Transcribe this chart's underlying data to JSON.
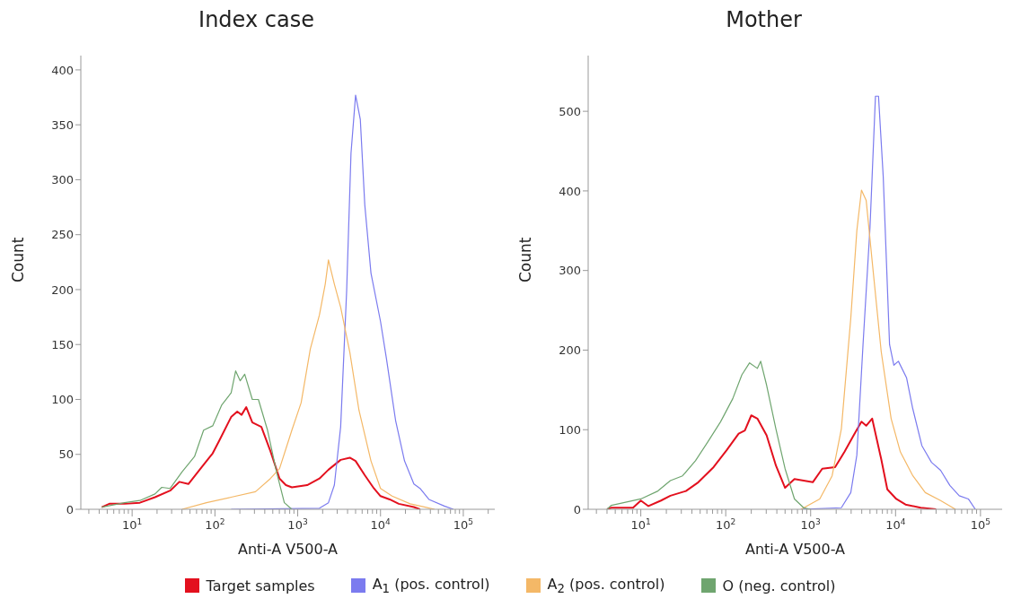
{
  "chart_data": [
    {
      "type": "line",
      "title": "Index case",
      "xlabel": "Anti-A V500-A",
      "ylabel": "Count",
      "log": "x",
      "legend": "bottom",
      "grid": false,
      "marker": "none",
      "line_style": "solid",
      "xlim": [
        2.4,
        240000
      ],
      "ylim": [
        0,
        413
      ],
      "yticks": [
        0,
        50,
        100,
        150,
        200,
        250,
        300,
        350,
        400
      ],
      "xticks": [
        {
          "value": 3,
          "label": null
        },
        {
          "value": 4,
          "label": null
        },
        {
          "value": 5,
          "label": null
        },
        {
          "value": 6,
          "label": null
        },
        {
          "value": 7,
          "label": null
        },
        {
          "value": 8,
          "label": null
        },
        {
          "value": 9,
          "label": null
        },
        {
          "value": 10,
          "label": "10$^{1}$"
        },
        {
          "value": 20,
          "label": null
        },
        {
          "value": 30,
          "label": null
        },
        {
          "value": 40,
          "label": null
        },
        {
          "value": 50,
          "label": null
        },
        {
          "value": 60,
          "label": null
        },
        {
          "value": 70,
          "label": null
        },
        {
          "value": 80,
          "label": null
        },
        {
          "value": 90,
          "label": null
        },
        {
          "value": 100,
          "label": "10$^{2}$"
        },
        {
          "value": 200,
          "label": null
        },
        {
          "value": 300,
          "label": null
        },
        {
          "value": 400,
          "label": null
        },
        {
          "value": 500,
          "label": null
        },
        {
          "value": 600,
          "label": null
        },
        {
          "value": 700,
          "label": null
        },
        {
          "value": 800,
          "label": null
        },
        {
          "value": 900,
          "label": null
        },
        {
          "value": 1000,
          "label": "10$^{3}$"
        },
        {
          "value": 2000,
          "label": null
        },
        {
          "value": 3000,
          "label": null
        },
        {
          "value": 4000,
          "label": null
        },
        {
          "value": 5000,
          "label": null
        },
        {
          "value": 6000,
          "label": null
        },
        {
          "value": 7000,
          "label": null
        },
        {
          "value": 8000,
          "label": null
        },
        {
          "value": 9000,
          "label": null
        },
        {
          "value": 10000,
          "label": "10$^{4}$"
        },
        {
          "value": 20000,
          "label": null
        },
        {
          "value": 30000,
          "label": null
        },
        {
          "value": 40000,
          "label": null
        },
        {
          "value": 50000,
          "label": null
        },
        {
          "value": 60000,
          "label": null
        },
        {
          "value": 70000,
          "label": null
        },
        {
          "value": 80000,
          "label": null
        },
        {
          "value": 90000,
          "label": null
        },
        {
          "value": 100000,
          "label": "10$^{5}$"
        },
        {
          "value": 200000,
          "label": null
        }
      ],
      "series": [
        {
          "name": "Target samples",
          "color": "#e3101e",
          "x": [
            4.3,
            5.3,
            8.1,
            12.4,
            18.9,
            28.8,
            37.2,
            47.8,
            67,
            94,
            112,
            157,
            186,
            210,
            239,
            283,
            364,
            468,
            603,
            720,
            850,
            1300,
            1830,
            2350,
            3300,
            4260,
            5000,
            6460,
            8330,
            10000,
            12900,
            16600,
            25300,
            30000
          ],
          "values": [
            2,
            5,
            5,
            6,
            11,
            17,
            25,
            23,
            37,
            51,
            62,
            84,
            89,
            86,
            93,
            79,
            75,
            53,
            28,
            22,
            20,
            22,
            28,
            36,
            45,
            47,
            44,
            31,
            19,
            12,
            9,
            5,
            2,
            0
          ]
        },
        {
          "name": "A$_{1}$ (pos. control)",
          "color": "#7b7bef",
          "x": [
            157,
            1830,
            2350,
            2770,
            3300,
            3900,
            4400,
            5000,
            5700,
            6460,
            7670,
            10000,
            11800,
            15200,
            19500,
            25300,
            30000,
            38400,
            59000,
            76000
          ],
          "values": [
            0,
            1,
            6,
            22,
            75,
            199,
            324,
            377,
            355,
            277,
            215,
            171,
            137,
            81,
            44,
            23,
            19,
            9,
            3,
            0
          ]
        },
        {
          "name": "A$_{2}$ (pos. control)",
          "color": "#f4b867",
          "x": [
            40,
            79,
            157,
            309,
            468,
            603,
            850,
            1100,
            1420,
            1830,
            2150,
            2350,
            2770,
            3300,
            4260,
            5500,
            7670,
            10000,
            13800,
            22800,
            34700,
            45000
          ],
          "values": [
            0,
            6,
            11,
            16,
            28,
            37,
            72,
            97,
            146,
            177,
            205,
            227,
            205,
            184,
            143,
            90,
            44,
            19,
            12,
            5,
            2,
            0
          ]
        },
        {
          "name": "O (neg. control)",
          "color": "#6fa56f",
          "x": [
            4.3,
            8.1,
            12.4,
            18.9,
            22.8,
            28.8,
            40,
            56.7,
            73,
            94,
            121,
            157,
            178,
            202,
            229,
            283,
            335,
            432,
            555,
            689,
            850
          ],
          "values": [
            2,
            6,
            8,
            14,
            20,
            19,
            34,
            48,
            72,
            76,
            95,
            106,
            126,
            117,
            123,
            100,
            100,
            72,
            34,
            6,
            0
          ]
        }
      ]
    },
    {
      "type": "line",
      "title": "Mother",
      "xlabel": "Anti-A V500-A",
      "ylabel": "Count",
      "log": "x",
      "legend": "bottom",
      "grid": false,
      "marker": "none",
      "line_style": "solid",
      "xlim": [
        2.4,
        180000
      ],
      "ylim": [
        0,
        570
      ],
      "yticks": [
        0,
        100,
        200,
        300,
        400,
        500
      ],
      "xticks": [
        {
          "value": 3,
          "label": null
        },
        {
          "value": 4,
          "label": null
        },
        {
          "value": 5,
          "label": null
        },
        {
          "value": 6,
          "label": null
        },
        {
          "value": 7,
          "label": null
        },
        {
          "value": 8,
          "label": null
        },
        {
          "value": 9,
          "label": null
        },
        {
          "value": 10,
          "label": "10$^{1}$"
        },
        {
          "value": 20,
          "label": null
        },
        {
          "value": 30,
          "label": null
        },
        {
          "value": 40,
          "label": null
        },
        {
          "value": 50,
          "label": null
        },
        {
          "value": 60,
          "label": null
        },
        {
          "value": 70,
          "label": null
        },
        {
          "value": 80,
          "label": null
        },
        {
          "value": 90,
          "label": null
        },
        {
          "value": 100,
          "label": "10$^{2}$"
        },
        {
          "value": 200,
          "label": null
        },
        {
          "value": 300,
          "label": null
        },
        {
          "value": 400,
          "label": null
        },
        {
          "value": 500,
          "label": null
        },
        {
          "value": 600,
          "label": null
        },
        {
          "value": 700,
          "label": null
        },
        {
          "value": 800,
          "label": null
        },
        {
          "value": 900,
          "label": null
        },
        {
          "value": 1000,
          "label": "10$^{3}$"
        },
        {
          "value": 2000,
          "label": null
        },
        {
          "value": 3000,
          "label": null
        },
        {
          "value": 4000,
          "label": null
        },
        {
          "value": 5000,
          "label": null
        },
        {
          "value": 6000,
          "label": null
        },
        {
          "value": 7000,
          "label": null
        },
        {
          "value": 8000,
          "label": null
        },
        {
          "value": 9000,
          "label": null
        },
        {
          "value": 10000,
          "label": "10$^{4}$"
        },
        {
          "value": 20000,
          "label": null
        },
        {
          "value": 30000,
          "label": null
        },
        {
          "value": 40000,
          "label": null
        },
        {
          "value": 50000,
          "label": null
        },
        {
          "value": 60000,
          "label": null
        },
        {
          "value": 70000,
          "label": null
        },
        {
          "value": 80000,
          "label": null
        },
        {
          "value": 90000,
          "label": null
        },
        {
          "value": 100000,
          "label": "10$^{5}$"
        }
      ],
      "series": [
        {
          "name": "Target samples",
          "color": "#e3101e",
          "x": [
            4,
            4.5,
            8.1,
            10,
            12.3,
            17.3,
            22.3,
            34,
            47.6,
            72,
            102,
            142,
            168,
            200,
            236,
            303,
            390,
            500,
            645,
            827,
            1060,
            1370,
            1940,
            2500,
            3210,
            3970,
            4510,
            5300,
            6780,
            8000,
            10200,
            13100,
            19800,
            30000
          ],
          "values": [
            0,
            2,
            2,
            11,
            4,
            11,
            17,
            23,
            34,
            53,
            74,
            95,
            99,
            118,
            114,
            93,
            55,
            27,
            38,
            36,
            34,
            51,
            53,
            72,
            93,
            110,
            105,
            114,
            63,
            25,
            13,
            6,
            2,
            0
          ]
        },
        {
          "name": "A$_{1}$ (pos. control)",
          "color": "#7b7bef",
          "x": [
            770,
            2300,
            2970,
            3500,
            4140,
            5000,
            5800,
            6300,
            7160,
            8500,
            9550,
            10800,
            13500,
            15900,
            20400,
            26500,
            33900,
            43600,
            56200,
            72000,
            87000
          ],
          "values": [
            0,
            2,
            21,
            68,
            207,
            354,
            519,
            519,
            418,
            207,
            181,
            186,
            165,
            127,
            80,
            59,
            49,
            30,
            17,
            13,
            0
          ]
        },
        {
          "name": "A$_{2}$ (pos. control)",
          "color": "#f4b867",
          "x": [
            770,
            1280,
            1790,
            2300,
            2970,
            3500,
            3970,
            4510,
            5300,
            6780,
            8870,
            11400,
            16000,
            22400,
            33900,
            50800
          ],
          "values": [
            0,
            13,
            42,
            101,
            240,
            350,
            401,
            388,
            312,
            198,
            114,
            72,
            42,
            21,
            11,
            0
          ]
        },
        {
          "name": "O (neg. control)",
          "color": "#6fa56f",
          "x": [
            4,
            4.5,
            10,
            15.9,
            22.3,
            31,
            44,
            61,
            87,
            121,
            155,
            191,
            236,
            258,
            303,
            390,
            500,
            645,
            827,
            1000
          ],
          "values": [
            0,
            5,
            13,
            23,
            36,
            42,
            61,
            84,
            110,
            139,
            169,
            184,
            177,
            186,
            156,
            101,
            51,
            13,
            2,
            0
          ]
        }
      ]
    }
  ]
}
